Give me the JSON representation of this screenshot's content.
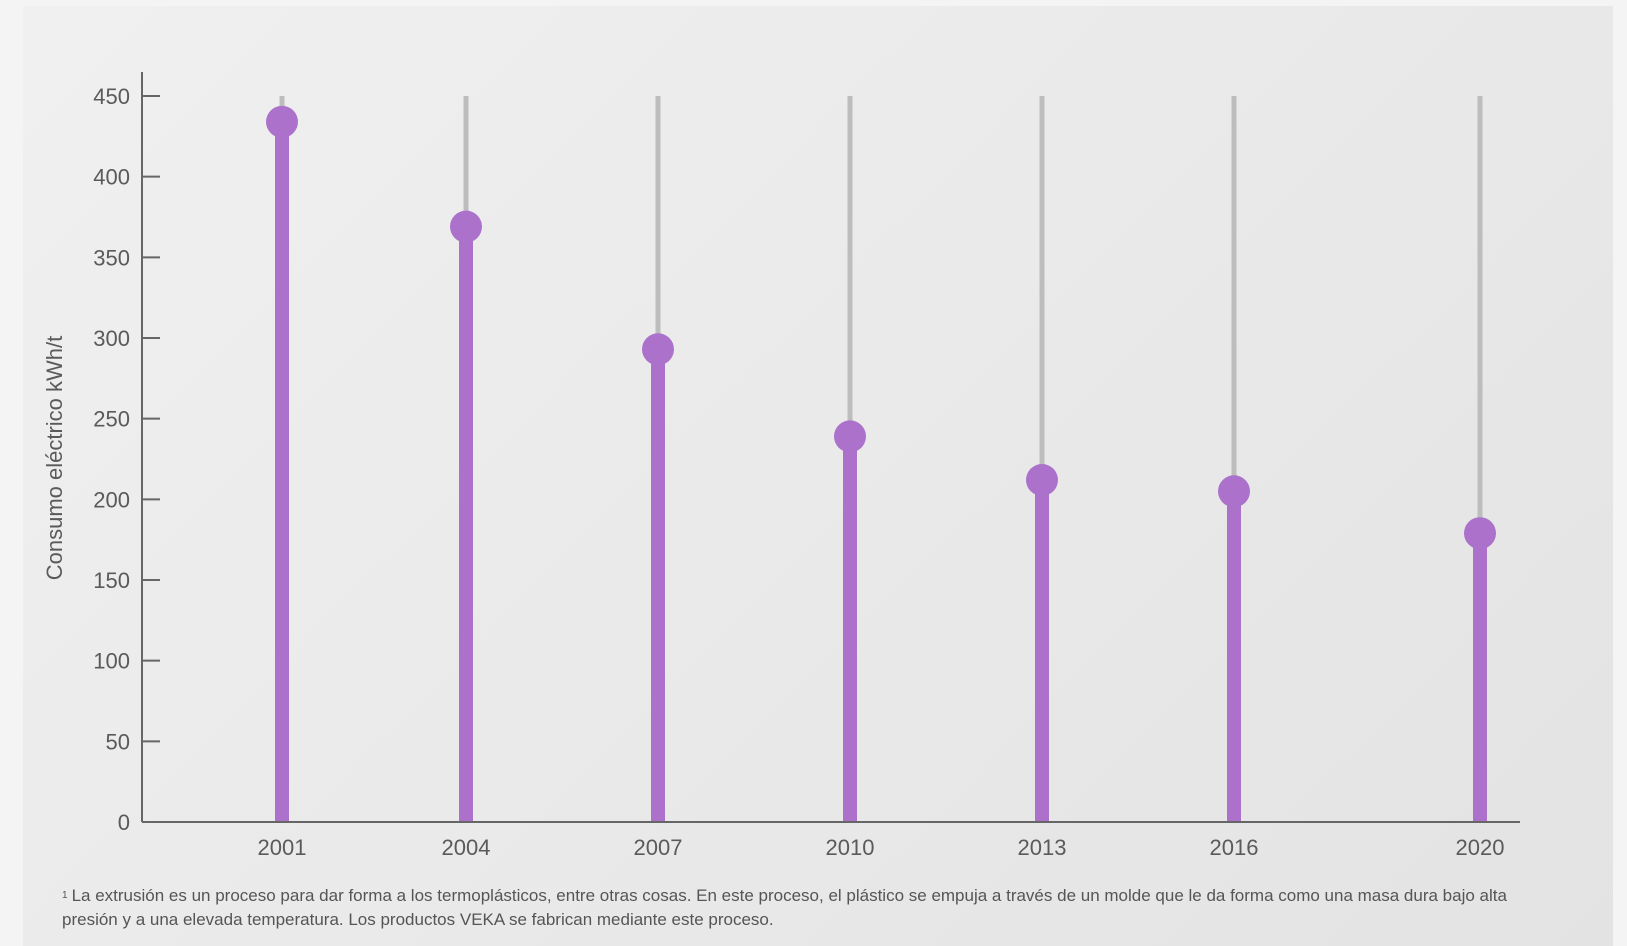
{
  "chart_data": {
    "type": "lollipop",
    "title": "",
    "ylabel": "Consumo eléctrico kWh/t",
    "xlabel": "",
    "ylim": [
      0,
      450
    ],
    "yticks": [
      0,
      50,
      100,
      150,
      200,
      250,
      300,
      350,
      400,
      450
    ],
    "categories": [
      "2001",
      "2004",
      "2007",
      "2010",
      "2013",
      "2016",
      "2020"
    ],
    "values": [
      434,
      369,
      293,
      239,
      212,
      205,
      179
    ],
    "colors": {
      "value": "#ac72cb",
      "track": "#bdbdbd",
      "axis": "#666666"
    }
  },
  "footnote": {
    "marker": "1",
    "text": "La extrusión es un proceso para dar forma a los termoplásticos, entre otras cosas. En este proceso, el plástico se empuja a través de un molde que le da forma como una masa dura bajo alta presión y a una elevada temperatura. Los productos VEKA se fabrican mediante este proceso."
  }
}
